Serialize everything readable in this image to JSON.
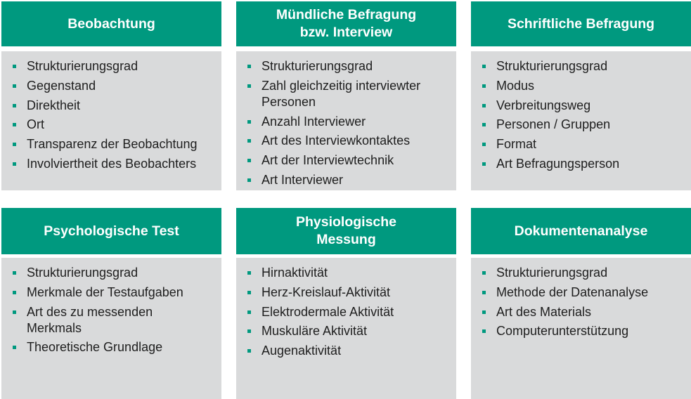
{
  "colors": {
    "header_bg": "#00997f",
    "body_bg": "#d9dadb",
    "bullet": "#00997f"
  },
  "cards": [
    {
      "title": "Beobachtung",
      "items": [
        "Strukturierungsgrad",
        "Gegenstand",
        "Direktheit",
        "Ort",
        "Transparenz der Beobachtung",
        "Involviertheit des Beobachters"
      ]
    },
    {
      "title": "Mündliche Befragung bzw. Interview",
      "items": [
        "Strukturierungsgrad",
        "Zahl gleichzeitig interviewter Personen",
        "Anzahl Interviewer",
        "Art des Interviewkontaktes",
        "Art der Interviewtechnik",
        "Art Interviewer"
      ]
    },
    {
      "title": "Schriftliche Befragung",
      "items": [
        "Strukturierungsgrad",
        "Modus",
        "Verbreitungsweg",
        "Personen / Gruppen",
        "Format",
        "Art Befragungsperson"
      ]
    },
    {
      "title": "Psychologische Test",
      "items": [
        "Strukturierungsgrad",
        "Merkmale der Testaufgaben",
        "Art des zu messenden Merkmals",
        "Theoretische Grundlage"
      ]
    },
    {
      "title": "Physiologische Messung",
      "items": [
        "Hirnaktivität",
        "Herz-Kreislauf-Aktivität",
        "Elektrodermale Aktivität",
        "Muskuläre Aktivität",
        "Augenaktivität"
      ]
    },
    {
      "title": "Dokumentenanalyse",
      "items": [
        "Strukturierungsgrad",
        "Methode der Datenanalyse",
        "Art des Materials",
        "Computerunterstützung"
      ]
    }
  ]
}
